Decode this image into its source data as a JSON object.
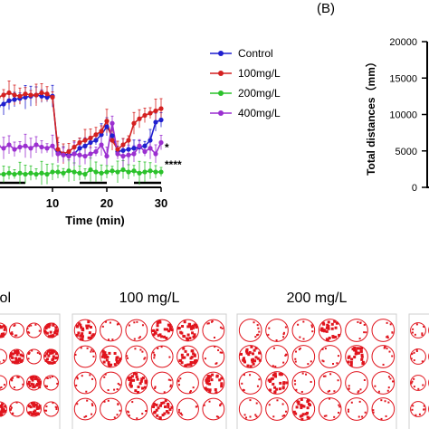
{
  "chart_data": [
    {
      "type": "line",
      "xlabel": "Time (min)",
      "x_ticks": [
        "10",
        "20",
        "30"
      ],
      "xlim": [
        0,
        30
      ],
      "ylim": [
        0,
        100
      ],
      "x": [
        0,
        1,
        2,
        3,
        4,
        5,
        6,
        7,
        8,
        9,
        10,
        11,
        12,
        13,
        14,
        15,
        16,
        17,
        18,
        19,
        20,
        21,
        22,
        23,
        24,
        25,
        26,
        27,
        28,
        29,
        30
      ],
      "series": [
        {
          "name": "Control",
          "color": "#1f1fcf",
          "values": [
            70,
            72,
            75,
            76,
            77,
            78,
            79,
            80,
            79,
            78,
            79,
            30,
            28,
            27,
            28,
            33,
            35,
            38,
            40,
            45,
            52,
            44,
            30,
            31,
            32,
            33,
            34,
            35,
            40,
            56,
            58
          ]
        },
        {
          "name": "100mg/L",
          "color": "#d42020",
          "values": [
            78,
            80,
            82,
            80,
            79,
            81,
            80,
            80,
            82,
            81,
            78,
            32,
            28,
            30,
            34,
            38,
            40,
            42,
            45,
            48,
            57,
            40,
            32,
            36,
            40,
            55,
            59,
            62,
            64,
            66,
            68
          ]
        },
        {
          "name": "200mg/L",
          "color": "#2bc22b",
          "values": [
            10,
            10,
            11,
            10,
            11,
            10,
            11,
            10,
            11,
            10,
            12,
            12,
            11,
            13,
            12,
            11,
            10,
            14,
            12,
            11,
            12,
            13,
            12,
            14,
            12,
            13,
            11,
            12,
            13,
            12,
            12
          ]
        },
        {
          "name": "400mg/L",
          "color": "#9b2fd0",
          "values": [
            35,
            33,
            36,
            32,
            34,
            35,
            33,
            36,
            34,
            33,
            35,
            28,
            27,
            26,
            28,
            27,
            26,
            28,
            30,
            36,
            26,
            55,
            28,
            26,
            27,
            28,
            35,
            30,
            33,
            28,
            38
          ]
        }
      ],
      "annotations": [
        "*",
        "****"
      ],
      "legend_position": "right"
    },
    {
      "type": "bar",
      "panel_label": "(B)",
      "ylabel": "Total distances（mm）",
      "y_ticks": [
        "0",
        "5000",
        "10000",
        "15000",
        "20000"
      ],
      "ylim": [
        0,
        20000
      ]
    }
  ],
  "track_panels": [
    {
      "label": "ol",
      "dense_wells": 10
    },
    {
      "label": "100 mg/L",
      "dense_wells": 8
    },
    {
      "label": "200 mg/L",
      "dense_wells": 5
    },
    {
      "label": "",
      "dense_wells": 3
    }
  ],
  "colors": {
    "track": "#e0141d",
    "axis": "#000000",
    "frame": "#cfcfcf"
  }
}
